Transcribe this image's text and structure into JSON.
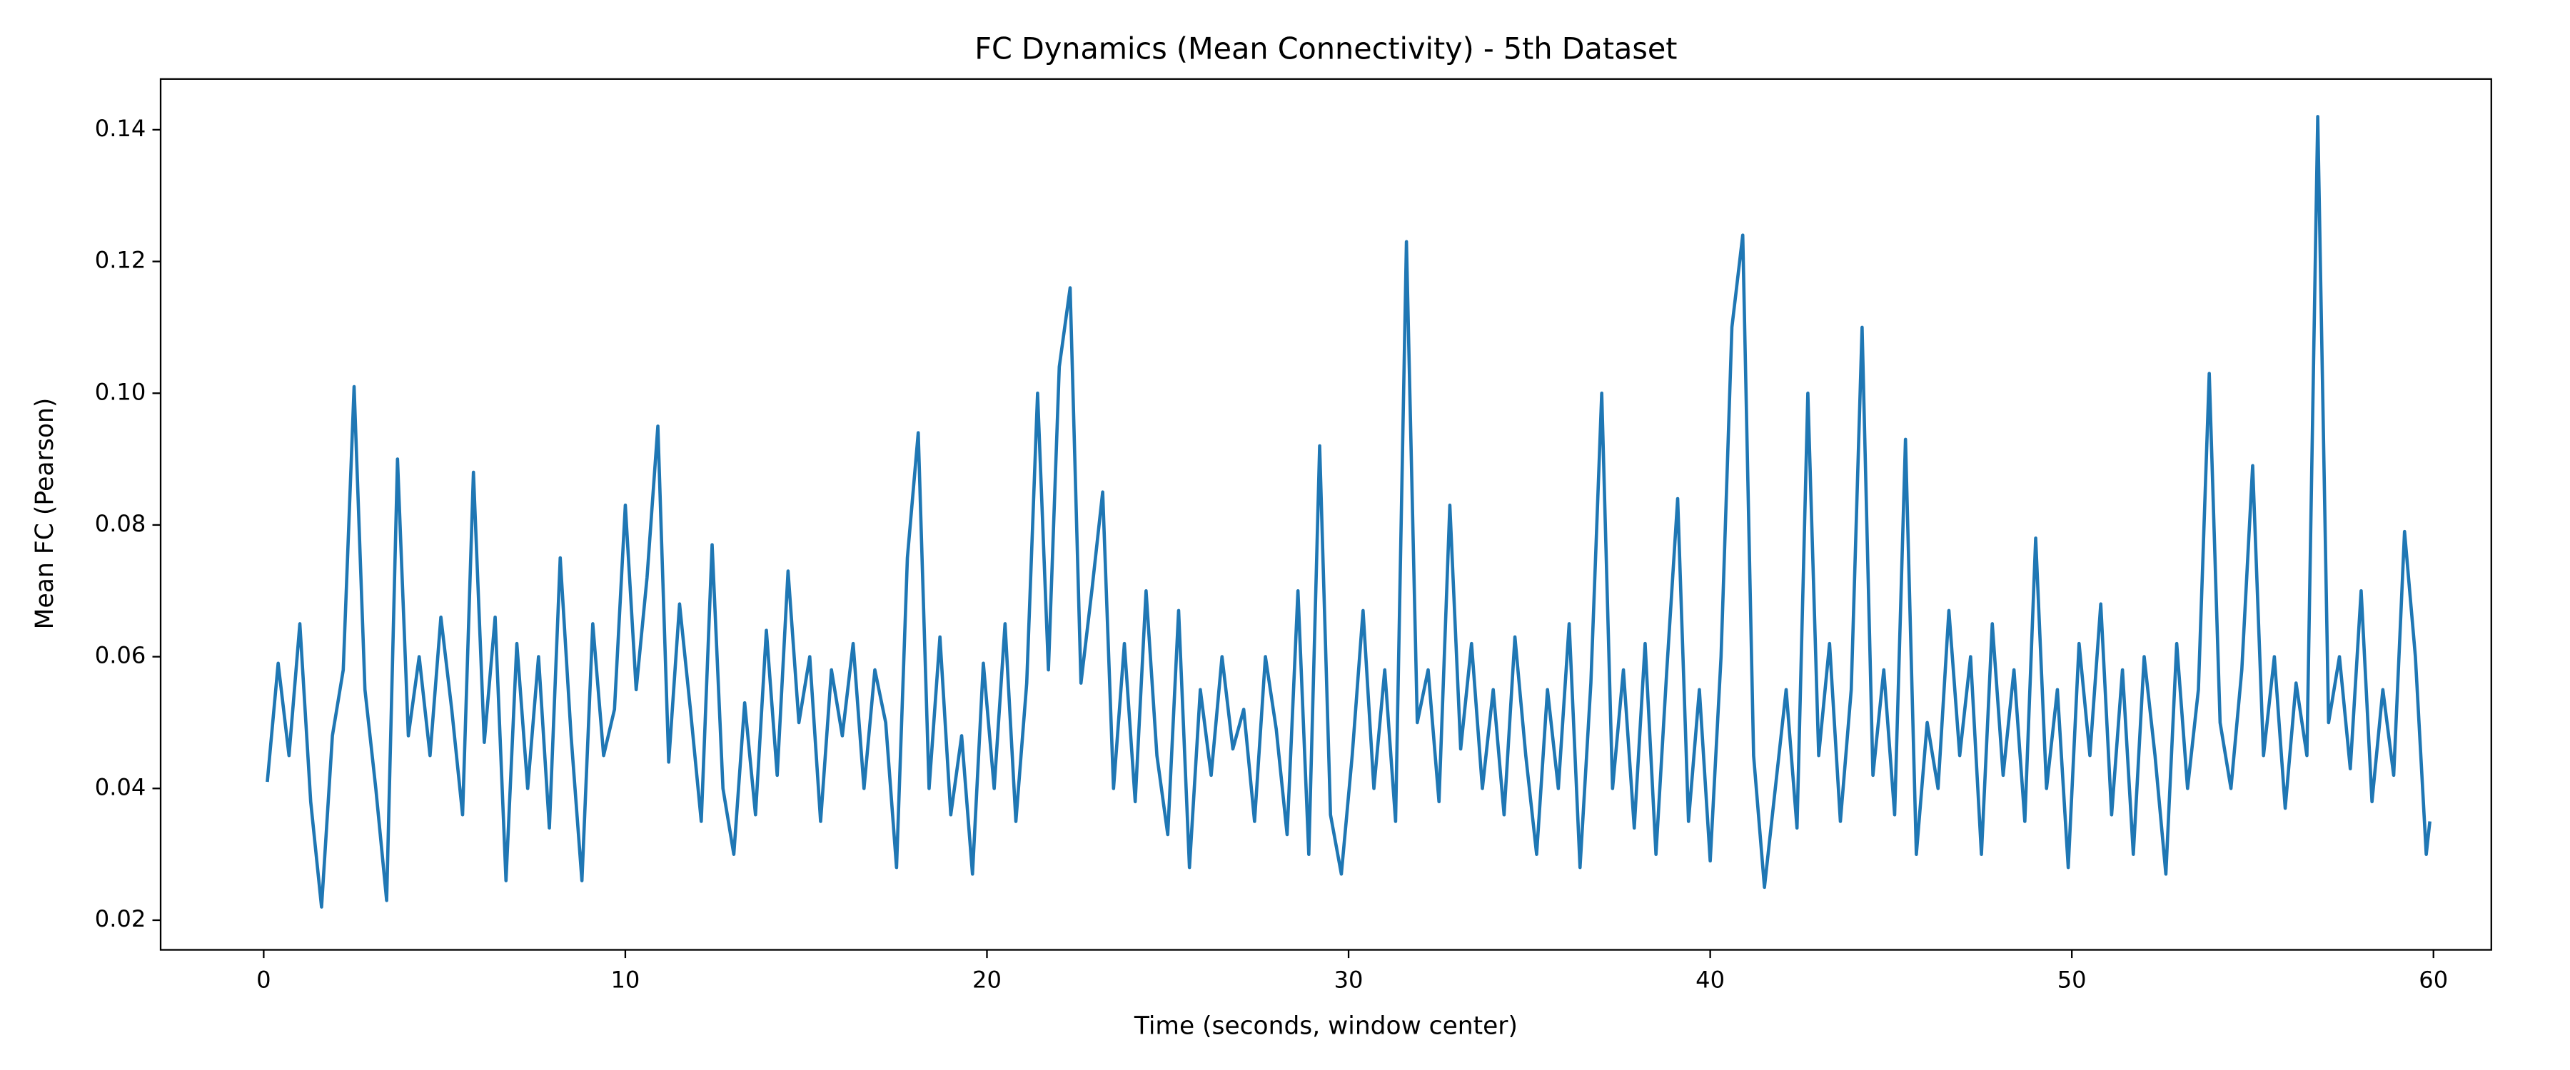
{
  "chart_data": {
    "type": "line",
    "title": "FC Dynamics (Mean Connectivity) - 5th Dataset",
    "x_label": "Time (seconds, window center)",
    "y_label": "Mean FC (Pearson)",
    "x": [
      0.1,
      0.4,
      0.7,
      1.0,
      1.3,
      1.6,
      1.9,
      2.2,
      2.5,
      2.8,
      3.1,
      3.4,
      3.7,
      4.0,
      4.3,
      4.6,
      4.9,
      5.2,
      5.5,
      5.8,
      6.1,
      6.4,
      6.7,
      7.0,
      7.3,
      7.6,
      7.9,
      8.2,
      8.5,
      8.8,
      9.1,
      9.4,
      9.7,
      10.0,
      10.3,
      10.6,
      10.9,
      11.2,
      11.5,
      11.8,
      12.1,
      12.4,
      12.7,
      13.0,
      13.3,
      13.6,
      13.9,
      14.2,
      14.5,
      14.8,
      15.1,
      15.4,
      15.7,
      16.0,
      16.3,
      16.6,
      16.9,
      17.2,
      17.5,
      17.8,
      18.1,
      18.4,
      18.7,
      19.0,
      19.3,
      19.6,
      19.9,
      20.2,
      20.5,
      20.8,
      21.1,
      21.4,
      21.7,
      22.0,
      22.3,
      22.6,
      22.9,
      23.2,
      23.5,
      23.8,
      24.1,
      24.4,
      24.7,
      25.0,
      25.3,
      25.6,
      25.9,
      26.2,
      26.5,
      26.8,
      27.1,
      27.4,
      27.7,
      28.0,
      28.3,
      28.6,
      28.9,
      29.2,
      29.5,
      29.8,
      30.1,
      30.4,
      30.7,
      31.0,
      31.3,
      31.6,
      31.9,
      32.2,
      32.5,
      32.8,
      33.1,
      33.4,
      33.7,
      34.0,
      34.3,
      34.6,
      34.9,
      35.2,
      35.5,
      35.8,
      36.1,
      36.4,
      36.7,
      37.0,
      37.3,
      37.6,
      37.9,
      38.2,
      38.5,
      38.8,
      39.1,
      39.4,
      39.7,
      40.0,
      40.3,
      40.6,
      40.9,
      41.2,
      41.5,
      41.8,
      42.1,
      42.4,
      42.7,
      43.0,
      43.3,
      43.6,
      43.9,
      44.2,
      44.5,
      44.8,
      45.1,
      45.4,
      45.7,
      46.0,
      46.3,
      46.6,
      46.9,
      47.2,
      47.5,
      47.8,
      48.1,
      48.4,
      48.7,
      49.0,
      49.3,
      49.6,
      49.9,
      50.2,
      50.5,
      50.8,
      51.1,
      51.4,
      51.7,
      52.0,
      52.3,
      52.6,
      52.9,
      53.2,
      53.5,
      53.8,
      54.1,
      54.4,
      54.7,
      55.0,
      55.3,
      55.6,
      55.9,
      56.2,
      56.5,
      56.8,
      57.1,
      57.4,
      57.7,
      58.0,
      58.3,
      58.6,
      58.9,
      59.2,
      59.5,
      59.8,
      59.9
    ],
    "series": [
      {
        "color": "#1f77b4",
        "values": [
          0.041,
          0.059,
          0.045,
          0.065,
          0.038,
          0.022,
          0.048,
          0.058,
          0.101,
          0.055,
          0.04,
          0.023,
          0.09,
          0.048,
          0.06,
          0.045,
          0.066,
          0.052,
          0.036,
          0.088,
          0.047,
          0.066,
          0.026,
          0.062,
          0.04,
          0.06,
          0.034,
          0.075,
          0.048,
          0.026,
          0.065,
          0.045,
          0.052,
          0.083,
          0.055,
          0.072,
          0.095,
          0.044,
          0.068,
          0.052,
          0.035,
          0.077,
          0.04,
          0.03,
          0.053,
          0.036,
          0.064,
          0.042,
          0.073,
          0.05,
          0.06,
          0.035,
          0.058,
          0.048,
          0.062,
          0.04,
          0.058,
          0.05,
          0.028,
          0.075,
          0.094,
          0.04,
          0.063,
          0.036,
          0.048,
          0.027,
          0.059,
          0.04,
          0.065,
          0.035,
          0.056,
          0.1,
          0.058,
          0.104,
          0.116,
          0.056,
          0.07,
          0.085,
          0.04,
          0.062,
          0.038,
          0.07,
          0.045,
          0.033,
          0.067,
          0.028,
          0.055,
          0.042,
          0.06,
          0.046,
          0.052,
          0.035,
          0.06,
          0.049,
          0.033,
          0.07,
          0.03,
          0.092,
          0.036,
          0.027,
          0.045,
          0.067,
          0.04,
          0.058,
          0.035,
          0.123,
          0.05,
          0.058,
          0.038,
          0.083,
          0.046,
          0.062,
          0.04,
          0.055,
          0.036,
          0.063,
          0.045,
          0.03,
          0.055,
          0.04,
          0.065,
          0.028,
          0.056,
          0.1,
          0.04,
          0.058,
          0.034,
          0.062,
          0.03,
          0.058,
          0.084,
          0.035,
          0.055,
          0.029,
          0.06,
          0.11,
          0.124,
          0.045,
          0.025,
          0.04,
          0.055,
          0.034,
          0.1,
          0.045,
          0.062,
          0.035,
          0.055,
          0.11,
          0.042,
          0.058,
          0.036,
          0.093,
          0.03,
          0.05,
          0.04,
          0.067,
          0.045,
          0.06,
          0.03,
          0.065,
          0.042,
          0.058,
          0.035,
          0.078,
          0.04,
          0.055,
          0.028,
          0.062,
          0.045,
          0.068,
          0.036,
          0.058,
          0.03,
          0.06,
          0.045,
          0.027,
          0.062,
          0.04,
          0.055,
          0.103,
          0.05,
          0.04,
          0.058,
          0.089,
          0.045,
          0.06,
          0.037,
          0.056,
          0.045,
          0.142,
          0.05,
          0.06,
          0.043,
          0.07,
          0.038,
          0.055,
          0.042,
          0.079,
          0.06,
          0.03,
          0.035
        ]
      }
    ],
    "xlim": [
      -2.85,
      61.6
    ],
    "ylim": [
      0.0155,
      0.1477
    ],
    "xticks": [
      0,
      10,
      20,
      30,
      40,
      50,
      60
    ],
    "yticks": [
      0.02,
      0.04,
      0.06,
      0.08,
      {
        "value": 0.1,
        "label": "0.10"
      },
      0.12,
      0.14
    ]
  }
}
